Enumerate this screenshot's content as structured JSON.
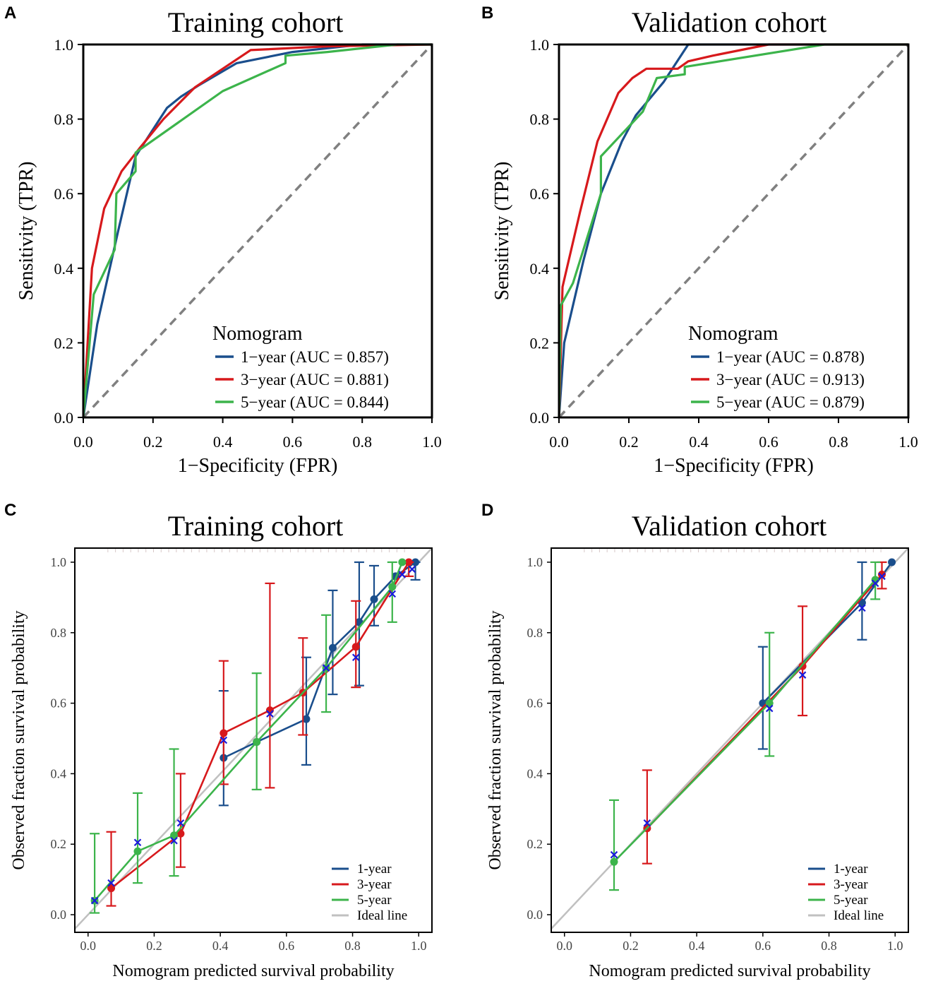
{
  "colors": {
    "one_year": "#1a4e8c",
    "three_year": "#d7191c",
    "five_year": "#3cb44b",
    "ideal": "#c0c0c0",
    "diagonal": "#808080",
    "cross": "#1a1adb"
  },
  "chart_data": [
    {
      "panel": "A",
      "type": "line",
      "title": "Training cohort",
      "xlabel": "1−Specificity (FPR)",
      "ylabel": "Sensitivity (TPR)",
      "xlim": [
        0,
        1
      ],
      "ylim": [
        0,
        1
      ],
      "xticks": [
        "0.0",
        "0.2",
        "0.4",
        "0.6",
        "0.8",
        "1.0"
      ],
      "yticks": [
        "0.0",
        "0.2",
        "0.4",
        "0.6",
        "0.8",
        "1.0"
      ],
      "legend_title": "Nomogram",
      "legend_position": "bottom-right",
      "series": [
        {
          "name": "1−year (AUC = 0.857)",
          "color_key": "one_year",
          "points": [
            [
              0,
              0
            ],
            [
              0.04,
              0.25
            ],
            [
              0.1,
              0.5
            ],
            [
              0.15,
              0.7
            ],
            [
              0.24,
              0.83
            ],
            [
              0.28,
              0.86
            ],
            [
              0.33,
              0.89
            ],
            [
              0.44,
              0.95
            ],
            [
              0.6,
              0.98
            ],
            [
              0.8,
              1.0
            ],
            [
              1,
              1
            ]
          ]
        },
        {
          "name": "3−year (AUC = 0.881)",
          "color_key": "three_year",
          "points": [
            [
              0,
              0
            ],
            [
              0.025,
              0.4
            ],
            [
              0.06,
              0.56
            ],
            [
              0.11,
              0.66
            ],
            [
              0.16,
              0.72
            ],
            [
              0.23,
              0.8
            ],
            [
              0.32,
              0.885
            ],
            [
              0.48,
              0.985
            ],
            [
              0.7,
              0.995
            ],
            [
              1,
              1
            ]
          ]
        },
        {
          "name": "5−year (AUC = 0.844)",
          "color_key": "five_year",
          "points": [
            [
              0,
              0
            ],
            [
              0.03,
              0.33
            ],
            [
              0.09,
              0.45
            ],
            [
              0.095,
              0.6
            ],
            [
              0.15,
              0.66
            ],
            [
              0.15,
              0.71
            ],
            [
              0.4,
              0.875
            ],
            [
              0.58,
              0.95
            ],
            [
              0.58,
              0.97
            ],
            [
              0.7,
              0.98
            ],
            [
              0.9,
              1.0
            ],
            [
              1,
              1
            ]
          ]
        }
      ]
    },
    {
      "panel": "B",
      "type": "line",
      "title": "Validation cohort",
      "xlabel": "1−Specificity (FPR)",
      "ylabel": "Sensitivity (TPR)",
      "xlim": [
        0,
        1
      ],
      "ylim": [
        0,
        1
      ],
      "xticks": [
        "0.0",
        "0.2",
        "0.4",
        "0.6",
        "0.8",
        "1.0"
      ],
      "yticks": [
        "0.0",
        "0.2",
        "0.4",
        "0.6",
        "0.8",
        "1.0"
      ],
      "legend_title": "Nomogram",
      "legend_position": "bottom-right",
      "series": [
        {
          "name": "1−year (AUC = 0.878)",
          "color_key": "one_year",
          "points": [
            [
              0,
              0
            ],
            [
              0.015,
              0.2
            ],
            [
              0.07,
              0.42
            ],
            [
              0.12,
              0.6
            ],
            [
              0.18,
              0.74
            ],
            [
              0.22,
              0.81
            ],
            [
              0.3,
              0.9
            ],
            [
              0.37,
              1.0
            ],
            [
              1,
              1
            ]
          ]
        },
        {
          "name": "3−year (AUC = 0.913)",
          "color_key": "three_year",
          "points": [
            [
              0,
              0
            ],
            [
              0.01,
              0.35
            ],
            [
              0.06,
              0.55
            ],
            [
              0.11,
              0.74
            ],
            [
              0.17,
              0.87
            ],
            [
              0.21,
              0.91
            ],
            [
              0.25,
              0.935
            ],
            [
              0.34,
              0.935
            ],
            [
              0.37,
              0.955
            ],
            [
              0.44,
              0.97
            ],
            [
              0.6,
              1.0
            ],
            [
              1,
              1
            ]
          ]
        },
        {
          "name": "5−year (AUC = 0.879)",
          "color_key": "five_year",
          "points": [
            [
              0,
              0
            ],
            [
              0.005,
              0.3
            ],
            [
              0.04,
              0.36
            ],
            [
              0.12,
              0.6
            ],
            [
              0.12,
              0.7
            ],
            [
              0.24,
              0.82
            ],
            [
              0.28,
              0.91
            ],
            [
              0.36,
              0.92
            ],
            [
              0.36,
              0.94
            ],
            [
              0.76,
              1.0
            ],
            [
              1,
              1
            ]
          ]
        }
      ]
    },
    {
      "panel": "C",
      "type": "calibration",
      "title": "Training cohort",
      "xlabel": "Nomogram predicted survival probability",
      "ylabel": "Observed fraction survival probability",
      "xlim": [
        -0.04,
        1.04
      ],
      "ylim": [
        -0.05,
        1.04
      ],
      "xticks": [
        "0.0",
        "0.2",
        "0.4",
        "0.6",
        "0.8",
        "1.0"
      ],
      "yticks": [
        "0.0",
        "0.2",
        "0.4",
        "0.6",
        "0.8",
        "1.0"
      ],
      "legend_position": "bottom-right",
      "legend_labels": [
        "1-year",
        "3-year",
        "5-year",
        "Ideal line"
      ],
      "series": [
        {
          "name": "1-year",
          "color_key": "one_year",
          "points": [
            [
              0.41,
              0.445,
              0.31,
              0.635
            ],
            [
              0.51,
              0.49,
              null,
              null
            ],
            [
              0.66,
              0.555,
              0.425,
              0.73
            ],
            [
              0.74,
              0.757,
              0.625,
              0.92
            ],
            [
              0.82,
              0.83,
              0.65,
              1.0
            ],
            [
              0.865,
              0.895,
              0.82,
              0.99
            ],
            [
              0.93,
              0.96,
              null,
              null
            ],
            [
              0.99,
              1.0,
              0.95,
              1.0
            ]
          ]
        },
        {
          "name": "3-year",
          "color_key": "three_year",
          "points": [
            [
              0.07,
              0.075,
              0.025,
              0.235
            ],
            [
              0.28,
              0.23,
              0.135,
              0.4
            ],
            [
              0.41,
              0.515,
              0.37,
              0.72
            ],
            [
              0.55,
              0.58,
              0.36,
              0.94
            ],
            [
              0.65,
              0.63,
              0.51,
              0.785
            ],
            [
              0.81,
              0.76,
              0.645,
              0.89
            ],
            [
              0.97,
              1.0,
              0.96,
              1.0
            ]
          ]
        },
        {
          "name": "5-year",
          "color_key": "five_year",
          "points": [
            [
              0.02,
              0.04,
              0.005,
              0.23
            ],
            [
              0.15,
              0.18,
              0.09,
              0.345
            ],
            [
              0.26,
              0.225,
              0.11,
              0.47
            ],
            [
              0.51,
              0.49,
              0.355,
              0.685
            ],
            [
              0.72,
              0.7,
              0.575,
              0.85
            ],
            [
              0.92,
              0.93,
              0.83,
              1.0
            ],
            [
              0.95,
              1.0,
              null,
              null
            ]
          ]
        }
      ],
      "crosses": [
        [
          0.02,
          0.04
        ],
        [
          0.07,
          0.09
        ],
        [
          0.15,
          0.205
        ],
        [
          0.26,
          0.21
        ],
        [
          0.28,
          0.26
        ],
        [
          0.41,
          0.495
        ],
        [
          0.55,
          0.57
        ],
        [
          0.72,
          0.7
        ],
        [
          0.81,
          0.73
        ],
        [
          0.92,
          0.91
        ],
        [
          0.95,
          0.965
        ],
        [
          0.98,
          0.98
        ]
      ]
    },
    {
      "panel": "D",
      "type": "calibration",
      "title": "Validation cohort",
      "xlabel": "Nomogram predicted survival probability",
      "ylabel": "Observed fraction survival probability",
      "xlim": [
        -0.04,
        1.04
      ],
      "ylim": [
        -0.05,
        1.04
      ],
      "xticks": [
        "0.0",
        "0.2",
        "0.4",
        "0.6",
        "0.8",
        "1.0"
      ],
      "yticks": [
        "0.0",
        "0.2",
        "0.4",
        "0.6",
        "0.8",
        "1.0"
      ],
      "legend_position": "bottom-right",
      "legend_labels": [
        "1-year",
        "3-year",
        "5-year",
        "Ideal line"
      ],
      "series": [
        {
          "name": "1-year",
          "color_key": "one_year",
          "points": [
            [
              0.6,
              0.6,
              0.47,
              0.76
            ],
            [
              0.9,
              0.885,
              0.78,
              1.0
            ],
            [
              0.99,
              1.0,
              null,
              null
            ]
          ]
        },
        {
          "name": "3-year",
          "color_key": "three_year",
          "points": [
            [
              0.25,
              0.245,
              0.145,
              0.41
            ],
            [
              0.72,
              0.705,
              0.565,
              0.875
            ],
            [
              0.96,
              0.965,
              0.925,
              1.0
            ]
          ]
        },
        {
          "name": "5-year",
          "color_key": "five_year",
          "points": [
            [
              0.15,
              0.15,
              0.07,
              0.325
            ],
            [
              0.62,
              0.6,
              0.45,
              0.8
            ],
            [
              0.94,
              0.95,
              0.895,
              1.0
            ]
          ]
        }
      ],
      "crosses": [
        [
          0.15,
          0.17
        ],
        [
          0.25,
          0.26
        ],
        [
          0.62,
          0.585
        ],
        [
          0.72,
          0.68
        ],
        [
          0.9,
          0.87
        ],
        [
          0.94,
          0.94
        ],
        [
          0.96,
          0.96
        ]
      ]
    }
  ]
}
